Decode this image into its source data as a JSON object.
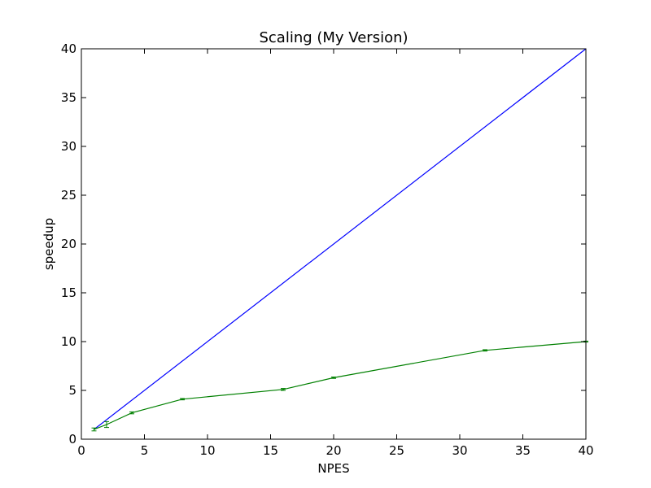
{
  "chart_data": {
    "type": "line",
    "title": "Scaling (My Version)",
    "xlabel": "NPES",
    "ylabel": "speedup",
    "xlim": [
      0,
      40
    ],
    "ylim": [
      0,
      40
    ],
    "xticks": [
      "0",
      "5",
      "10",
      "15",
      "20",
      "25",
      "30",
      "35",
      "40"
    ],
    "yticks": [
      "0",
      "5",
      "10",
      "15",
      "20",
      "25",
      "30",
      "35",
      "40"
    ],
    "grid": false,
    "legend": "none",
    "series": [
      {
        "color": "#0000ff",
        "x": [
          1,
          40
        ],
        "y": [
          1,
          40
        ],
        "yerr": [
          0,
          0
        ]
      },
      {
        "color": "#008000",
        "x": [
          1,
          2,
          4,
          8,
          16,
          20,
          32,
          40
        ],
        "y": [
          1.0,
          1.5,
          2.7,
          4.1,
          5.1,
          6.3,
          9.1,
          10.0
        ],
        "yerr": [
          0.15,
          0.3,
          0.1,
          0.07,
          0.1,
          0.07,
          0.07,
          0.05
        ]
      }
    ]
  }
}
